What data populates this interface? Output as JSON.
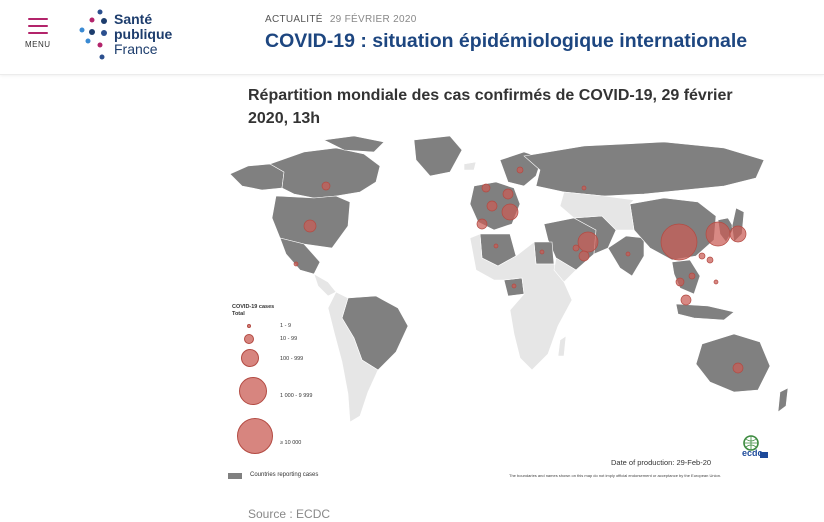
{
  "header": {
    "menu_label": "MENU",
    "logo": {
      "line1": "Santé",
      "line2": "publique",
      "line3": "France"
    },
    "kicker": "ACTUALITÉ",
    "date": "29 FÉVRIER 2020",
    "headline": "COVID-19 : situation épidémiologique internationale"
  },
  "figure": {
    "title": "Répartition mondiale des cas confirmés de COVID-19, 29 février 2020, 13h",
    "legend_title_1": "COVID-19 cases",
    "legend_title_2": "Total",
    "legend_items": [
      "1 - 9",
      "10 - 99",
      "100 - 999",
      "1 000 - 9 999",
      "≥ 10 000"
    ],
    "countries_label": "Countries reporting cases",
    "production": "Date of production: 29-Feb-20",
    "disclaimer": "The boundaries and names shown on this map do not imply official endorsement or acceptance by the European Union.",
    "ecdc_logo": "ecdc"
  },
  "colors": {
    "reporting": "#808080",
    "non_reporting": "#e6e6e6",
    "bubble": "#c95c54",
    "brand": "#1d4680",
    "accent": "#b3246b"
  },
  "source": "Source : ECDC"
}
